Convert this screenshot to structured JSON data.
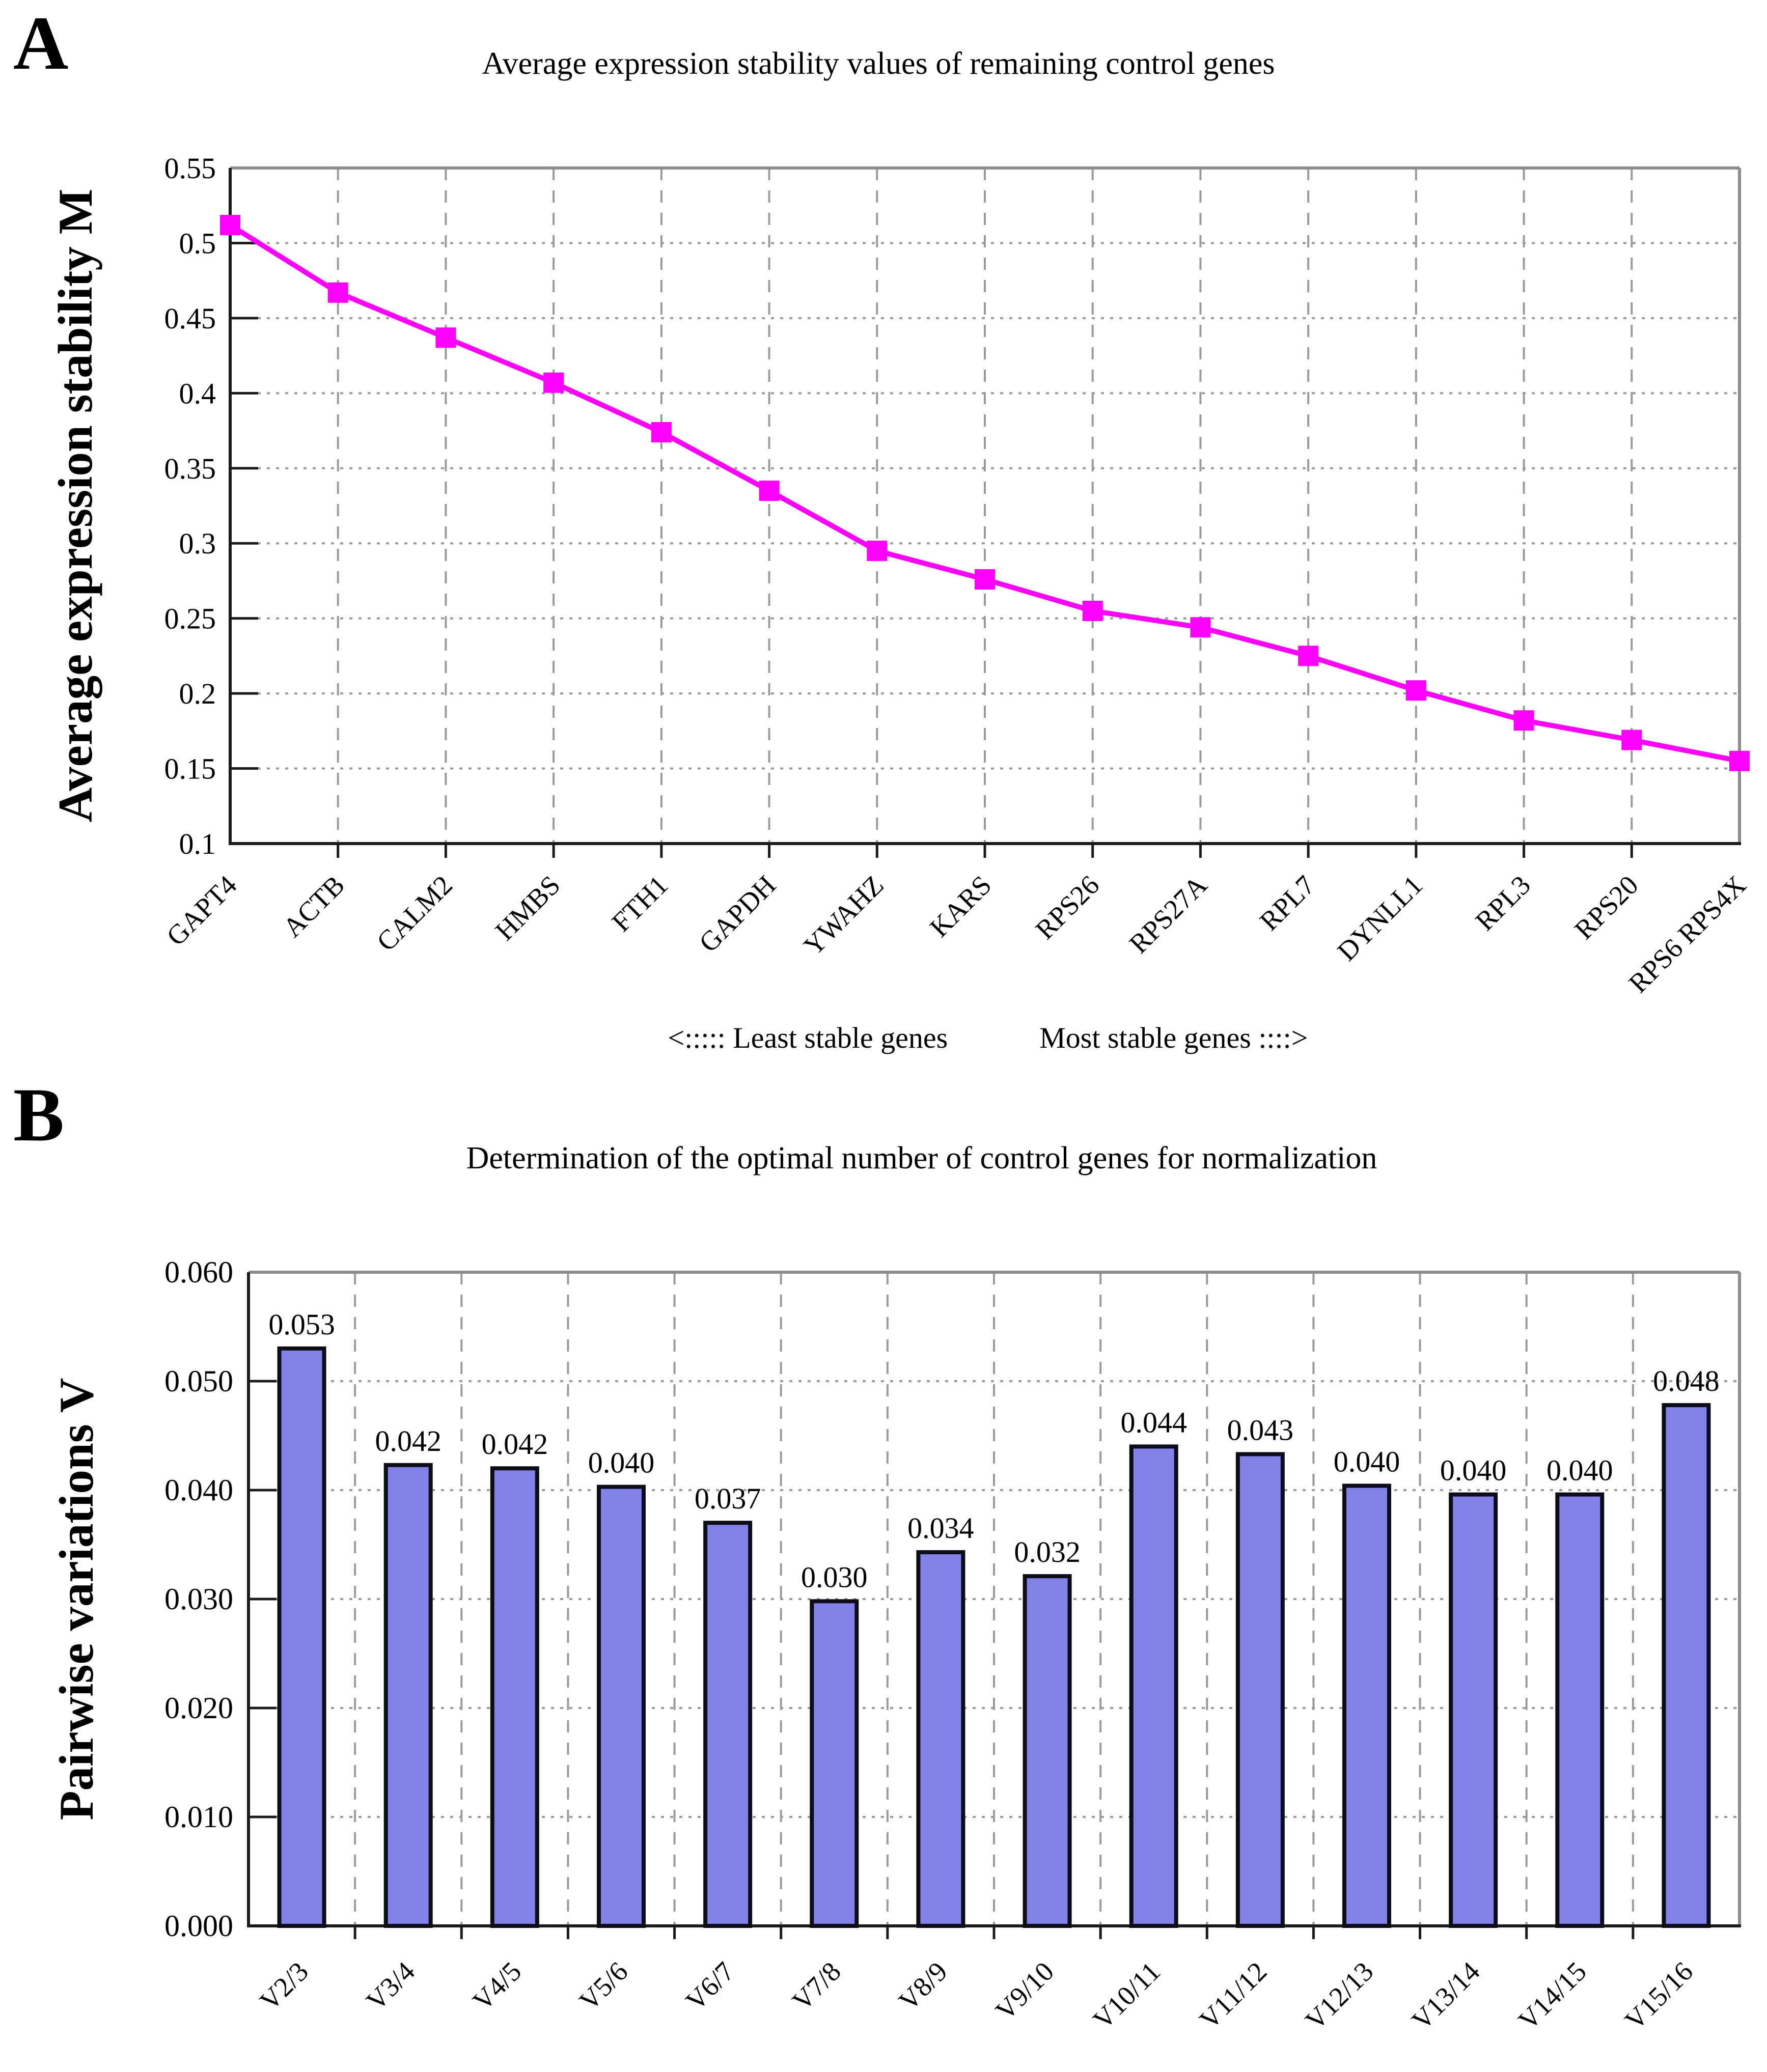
{
  "page": {
    "background": "#ffffff",
    "text_color": "#000000"
  },
  "panel_a": {
    "panel_letter": "A",
    "title": "Average expression stability values of remaining control genes",
    "y_axis_label": "Average expression stability M",
    "annotation_left": "<:::::  Least stable genes",
    "annotation_right": "Most stable genes ::::>"
  },
  "panel_b": {
    "panel_letter": "B",
    "title": "Determination of the optimal number of control genes for normalization",
    "y_axis_label": "Pairwise variations V"
  },
  "chart_data": [
    {
      "id": "panel-a",
      "type": "line",
      "title": "Average expression stability values of remaining control genes",
      "xlabel": "",
      "ylabel": "Average expression stability M",
      "categories": [
        "GAPT4",
        "ACTB",
        "CALM2",
        "HMBS",
        "FTH1",
        "GAPDH",
        "YWAHZ",
        "KARS",
        "RPS26",
        "RPS27A",
        "RPL7",
        "DYNLL1",
        "RPL3",
        "RPS20",
        "RPS6 RPS4X"
      ],
      "values": [
        0.512,
        0.467,
        0.437,
        0.407,
        0.374,
        0.335,
        0.295,
        0.276,
        0.255,
        0.244,
        0.225,
        0.202,
        0.182,
        0.169,
        0.155
      ],
      "ylim": [
        0.1,
        0.55
      ],
      "ytick_step": 0.05,
      "ytick_labels": [
        "0.55",
        "0.5",
        "0.45",
        "0.4",
        "0.35",
        "0.3",
        "0.25",
        "0.2",
        "0.15",
        "0.1"
      ],
      "line_color": "#FF00FF",
      "marker": "square",
      "grid": true,
      "legend": "none",
      "x_annotation_left": "<:::::  Least stable genes",
      "x_annotation_right": "Most stable genes ::::>"
    },
    {
      "id": "panel-b",
      "type": "bar",
      "title": "Determination of the optimal number of control genes for normalization",
      "xlabel": "",
      "ylabel": "Pairwise variations V",
      "categories": [
        "V2/3",
        "V3/4",
        "V4/5",
        "V5/6",
        "V6/7",
        "V7/8",
        "V8/9",
        "V9/10",
        "V10/11",
        "V11/12",
        "V12/13",
        "V13/14",
        "V14/15",
        "V15/16"
      ],
      "values": [
        0.053,
        0.042,
        0.042,
        0.04,
        0.037,
        0.03,
        0.034,
        0.032,
        0.044,
        0.043,
        0.04,
        0.04,
        0.04,
        0.048
      ],
      "values_precise": [
        0.053,
        0.0423,
        0.042,
        0.0403,
        0.037,
        0.0298,
        0.0343,
        0.0321,
        0.044,
        0.0433,
        0.0404,
        0.0396,
        0.0396,
        0.0478
      ],
      "value_labels": [
        "0.053",
        "0.042",
        "0.042",
        "0.040",
        "0.037",
        "0.030",
        "0.034",
        "0.032",
        "0.044",
        "0.043",
        "0.040",
        "0.040",
        "0.040",
        "0.048"
      ],
      "ylim": [
        0.0,
        0.06
      ],
      "ytick_step": 0.01,
      "ytick_labels": [
        "0.060",
        "0.050",
        "0.040",
        "0.030",
        "0.020",
        "0.010",
        "0.000"
      ],
      "bar_color": "#8181E8",
      "bar_border_color": "#0D0D1A",
      "grid": true,
      "legend": "none"
    }
  ],
  "colors": {
    "series_line": "#FF00FF",
    "bar_fill": "#8181E8",
    "bar_border": "#0D0D1A",
    "grid_line": "#9A9A9A",
    "axis_dark": "#1A1A1A",
    "axis_light": "#8C8C8C"
  }
}
